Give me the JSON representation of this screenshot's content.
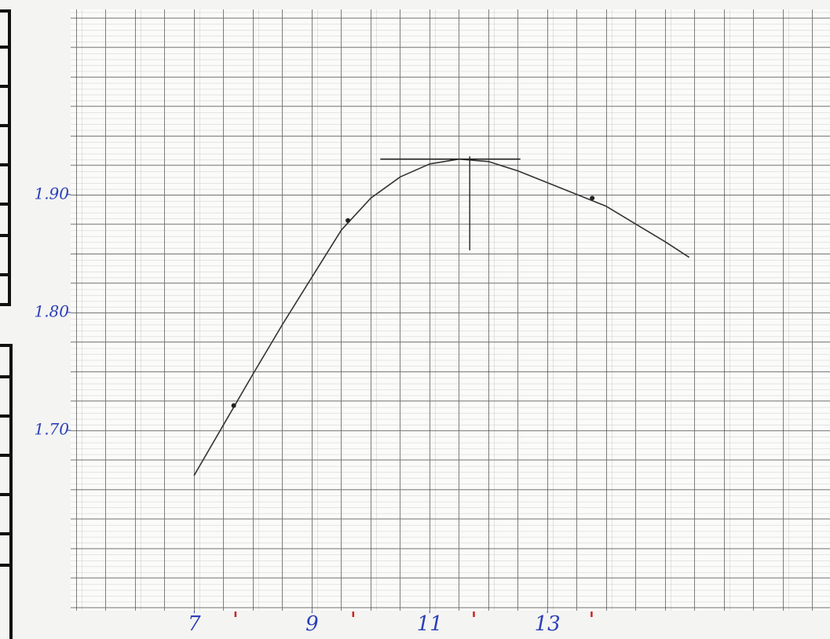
{
  "chart_data": {
    "type": "line",
    "x": [
      7,
      7.5,
      8,
      8.5,
      9,
      9.5,
      10,
      10.5,
      11,
      11.5,
      12,
      12.5,
      13,
      13.5,
      14,
      14.5,
      15,
      15.4
    ],
    "series": [
      {
        "color": "#333333",
        "values": [
          1.662,
          1.705,
          1.748,
          1.79,
          1.83,
          1.87,
          1.897,
          1.915,
          1.926,
          1.93,
          1.928,
          1.92,
          1.91,
          1.9,
          1.89,
          1.875,
          1.86,
          1.847
        ]
      }
    ],
    "points": {
      "x": [
        7.67,
        9.61,
        13.76
      ],
      "y": [
        1.721,
        1.878,
        1.897
      ],
      "color": "#222222"
    },
    "tangent": {
      "x": [
        10.17,
        12.53
      ],
      "y": [
        1.93,
        1.93
      ]
    },
    "peak_line": {
      "x": [
        11.68,
        11.68
      ],
      "y": [
        1.932,
        1.853
      ]
    },
    "x_marks": [
      7.7,
      9.7,
      11.75,
      13.75
    ],
    "x_marks_color": "#cc2222",
    "xlim": [
      4.9,
      17.8
    ],
    "ylim": [
      1.547,
      2.057
    ],
    "xticks": [
      7,
      9,
      11,
      13
    ],
    "yticks": [
      {
        "value": 1.7,
        "label": "1.70"
      },
      {
        "value": 1.8,
        "label": "1.80"
      },
      {
        "value": 1.9,
        "label": "1.90"
      }
    ]
  }
}
